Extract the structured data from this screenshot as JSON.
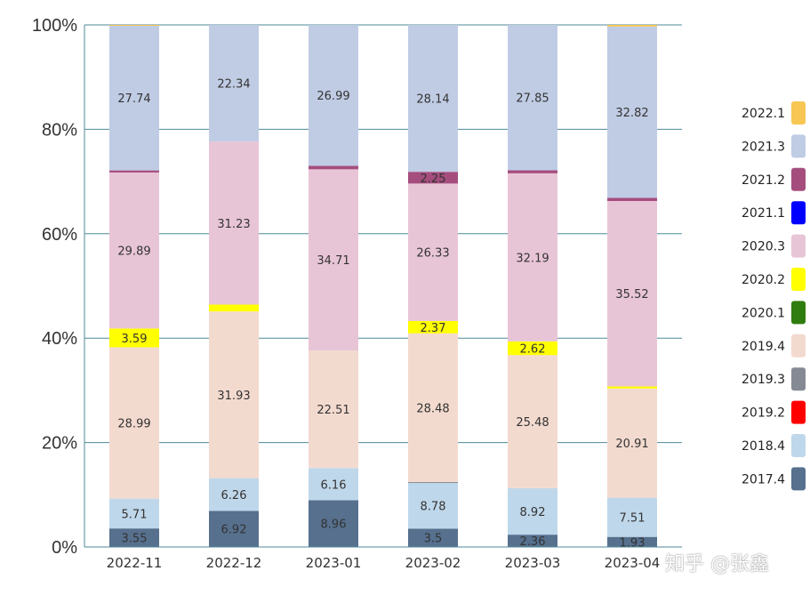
{
  "chart_data": {
    "type": "bar",
    "stacked": true,
    "percent": true,
    "categories": [
      "2022-11",
      "2022-12",
      "2023-01",
      "2023-02",
      "2023-03",
      "2023-04"
    ],
    "ylim": [
      0,
      100
    ],
    "yticks": [
      "0%",
      "20%",
      "40%",
      "60%",
      "80%",
      "100%"
    ],
    "grid": true,
    "legend_position": "right",
    "series": [
      {
        "name": "2017.4",
        "color": "#56708e",
        "values": [
          3.55,
          6.92,
          8.96,
          3.5,
          2.36,
          1.93
        ]
      },
      {
        "name": "2018.4",
        "color": "#bfd7ea",
        "values": [
          5.71,
          6.26,
          6.16,
          8.78,
          8.92,
          7.51
        ]
      },
      {
        "name": "2019.2",
        "color": "#ff0000",
        "values": [
          0,
          0,
          0,
          0,
          0,
          0
        ]
      },
      {
        "name": "2019.3",
        "color": "#858a94",
        "values": [
          0,
          0,
          0,
          0.15,
          0,
          0
        ]
      },
      {
        "name": "2019.4",
        "color": "#f3dacf",
        "values": [
          28.99,
          31.93,
          22.51,
          28.48,
          25.48,
          20.91
        ]
      },
      {
        "name": "2020.1",
        "color": "#2e7d0e",
        "values": [
          0,
          0,
          0,
          0,
          0,
          0
        ]
      },
      {
        "name": "2020.2",
        "color": "#ffff00",
        "values": [
          3.59,
          1.32,
          0,
          2.37,
          2.62,
          0.4
        ]
      },
      {
        "name": "2020.3",
        "color": "#e8c5d6",
        "values": [
          29.89,
          31.23,
          34.71,
          26.33,
          32.19,
          35.52
        ]
      },
      {
        "name": "2021.1",
        "color": "#0000ff",
        "values": [
          0,
          0,
          0,
          0,
          0,
          0
        ]
      },
      {
        "name": "2021.2",
        "color": "#a54e7e",
        "values": [
          0.4,
          0,
          0.67,
          2.25,
          0.58,
          0.6
        ]
      },
      {
        "name": "2021.3",
        "color": "#c0cce4",
        "values": [
          27.74,
          22.34,
          26.99,
          28.14,
          27.85,
          32.82
        ]
      },
      {
        "name": "2022.1",
        "color": "#f7c653",
        "values": [
          0.13,
          0,
          0,
          0,
          0,
          0.31
        ]
      }
    ]
  },
  "watermark": "知乎 @张鑫"
}
